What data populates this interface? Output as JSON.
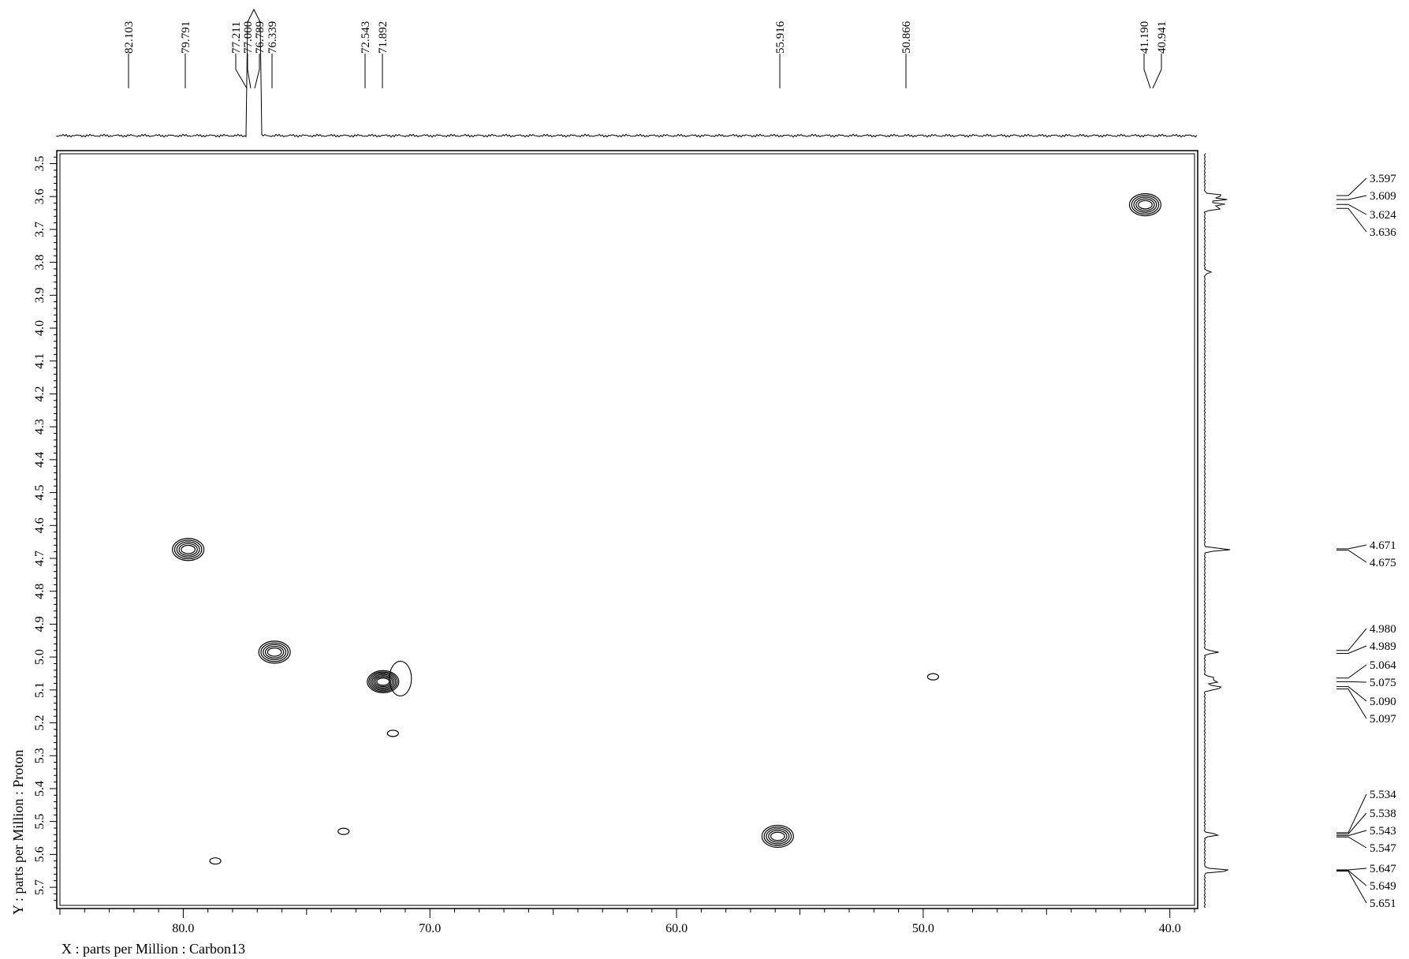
{
  "chart_data": {
    "type": "heatmap",
    "xlabel": "X : parts per Million : Carbon13",
    "ylabel": "Y : parts per Million : Proton",
    "x_axis": {
      "from": 85.0,
      "to": 39.0,
      "tick_labels": [
        "80.0",
        "70.0",
        "60.0",
        "50.0",
        "40.0"
      ],
      "tick_values": [
        80,
        70,
        60,
        50,
        40
      ],
      "minor_step": 1
    },
    "y_axis": {
      "from": 3.47,
      "to": 5.755,
      "tick_labels": [
        "3.5",
        "3.6",
        "3.7",
        "3.8",
        "3.9",
        "4.0",
        "4.1",
        "4.2",
        "4.3",
        "4.4",
        "4.5",
        "4.6",
        "4.7",
        "4.8",
        "4.9",
        "5.0",
        "5.1",
        "5.2",
        "5.3",
        "5.4",
        "5.5",
        "5.6",
        "5.7"
      ],
      "minor_step": 0.02
    },
    "grid": false,
    "top_projection_peaks": [
      "82.103",
      "79.791",
      "77.211",
      "77.000",
      "76.789",
      "76.339",
      "72.543",
      "71.892",
      "55.916",
      "50.866",
      "41.190",
      "40.941"
    ],
    "side_projection_peaks": [
      "3.597",
      "3.609",
      "3.624",
      "3.636",
      "4.671",
      "4.675",
      "4.980",
      "4.989",
      "5.064",
      "5.075",
      "5.090",
      "5.097",
      "5.534",
      "5.538",
      "5.543",
      "5.547",
      "5.647",
      "5.649",
      "5.651"
    ],
    "cross_peaks": [
      {
        "c13": 41.0,
        "h1": 3.625,
        "levels": 5
      },
      {
        "c13": 79.8,
        "h1": 4.673,
        "levels": 5
      },
      {
        "c13": 76.3,
        "h1": 4.985,
        "levels": 5
      },
      {
        "c13": 71.9,
        "h1": 5.075,
        "levels": 7
      },
      {
        "c13": 55.9,
        "h1": 5.545,
        "levels": 5
      },
      {
        "c13": 49.6,
        "h1": 5.06,
        "levels": 1
      },
      {
        "c13": 71.5,
        "h1": 5.232,
        "levels": 1
      },
      {
        "c13": 73.5,
        "h1": 5.53,
        "levels": 1
      },
      {
        "c13": 78.7,
        "h1": 5.62,
        "levels": 1
      }
    ]
  }
}
